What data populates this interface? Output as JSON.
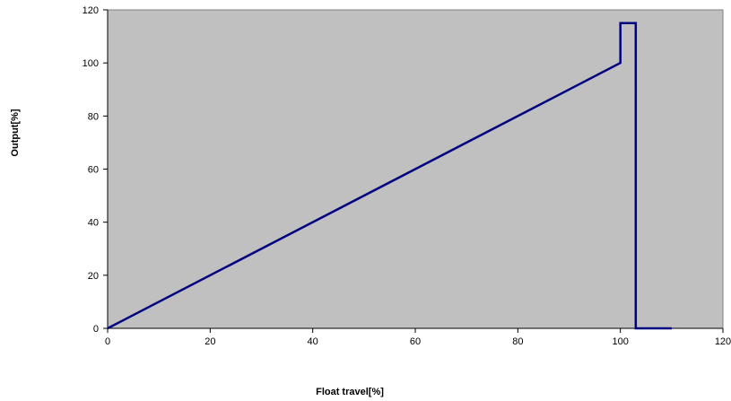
{
  "chart_data": {
    "type": "line",
    "title": "",
    "xlabel": "Float travel[%]",
    "ylabel": "Output[%]",
    "xlim": [
      0,
      120
    ],
    "ylim": [
      0,
      120
    ],
    "x_ticks": [
      "0",
      "20",
      "40",
      "60",
      "80",
      "100",
      "120"
    ],
    "y_ticks": [
      "0",
      "20",
      "40",
      "60",
      "80",
      "100",
      "120"
    ],
    "grid": false,
    "legend": "none",
    "plot_background": "#c0c0c0",
    "series": [
      {
        "color": "#000080",
        "x": [
          0,
          100,
          100,
          103,
          103,
          110
        ],
        "y": [
          0,
          100,
          115,
          115,
          0,
          0
        ]
      }
    ]
  }
}
